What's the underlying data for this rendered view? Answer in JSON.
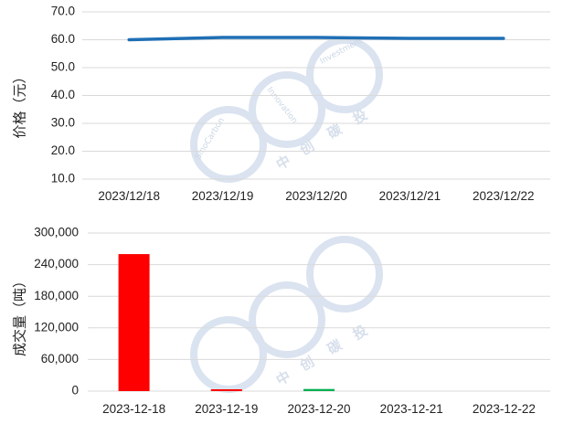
{
  "chart_data": [
    {
      "type": "line",
      "ylabel": "价格（元）",
      "ylim": [
        10,
        70
      ],
      "yticks": [
        "10.0",
        "20.0",
        "30.0",
        "40.0",
        "50.0",
        "60.0",
        "70.0"
      ],
      "categories": [
        "2023/12/18",
        "2023/12/19",
        "2023/12/20",
        "2023/12/21",
        "2023/12/22"
      ],
      "values": [
        60.0,
        60.8,
        60.8,
        60.5,
        60.5
      ],
      "color": "#1f6fb5",
      "grid": true
    },
    {
      "type": "bar",
      "ylabel": "成交量（吨）",
      "ylim": [
        0,
        300000
      ],
      "yticks": [
        "0",
        "60,000",
        "120,000",
        "180,000",
        "240,000",
        "300,000"
      ],
      "categories": [
        "2023-12-18",
        "2023-12-19",
        "2023-12-20",
        "2023-12-21",
        "2023-12-22"
      ],
      "values": [
        260000,
        3000,
        4000,
        0,
        0
      ],
      "colors": [
        "#ff0000",
        "#ff0000",
        "#00b050",
        "#ff0000",
        "#ff0000"
      ],
      "grid": true
    }
  ],
  "watermark": {
    "ring_text_1": "SinoCarbon",
    "ring_text_2": "Innovation",
    "ring_text_3": "Investment",
    "chars": [
      "中",
      "创",
      "碳",
      "投"
    ],
    "color": "#d3dcea"
  }
}
